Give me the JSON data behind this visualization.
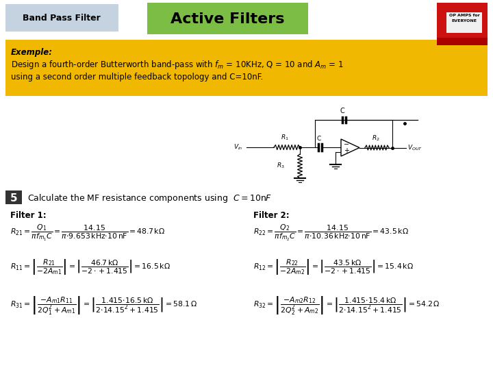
{
  "bg_color": "#ffffff",
  "header_left_text": "Band Pass Filter",
  "header_left_bg": "#c5d3e0",
  "header_center_text": "Active Filters",
  "header_center_bg": "#7cbd45",
  "example_bg": "#f0b800",
  "example_label": "Exemple:",
  "example_line2": "using a second order multiple feedback topology and C=10nF.",
  "step_bg": "#333333",
  "step_text": "5",
  "filter1_title": "Filter 1:",
  "filter2_title": "Filter 2:"
}
